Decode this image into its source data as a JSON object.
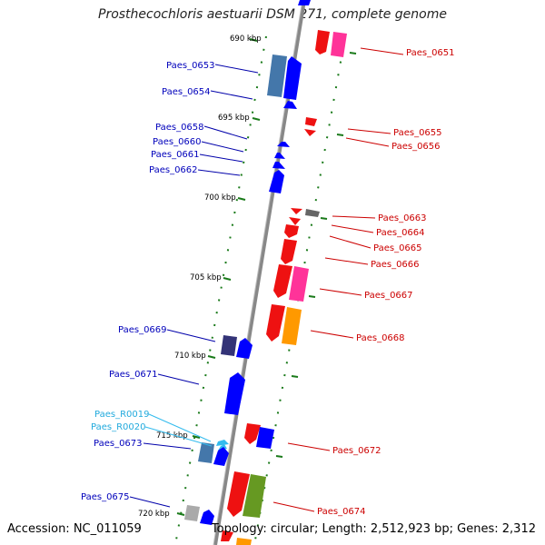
{
  "title": "Prosthecochloris aestuarii DSM 271, complete genome",
  "footer": {
    "accession": "Accession: NC_011059",
    "summary": "Topology: circular; Length: 2,512,923 bp; Genes: 2,312"
  },
  "ticks": [
    "690 kbp",
    "695 kbp",
    "700 kbp",
    "705 kbp",
    "710 kbp",
    "715 kbp",
    "720 kbp"
  ],
  "left_labels": [
    {
      "text": "Paes_0653",
      "color": "#0000bb"
    },
    {
      "text": "Paes_0654",
      "color": "#0000bb"
    },
    {
      "text": "Paes_0658",
      "color": "#0000bb"
    },
    {
      "text": "Paes_0660",
      "color": "#0000bb"
    },
    {
      "text": "Paes_0661",
      "color": "#0000bb"
    },
    {
      "text": "Paes_0662",
      "color": "#0000bb"
    },
    {
      "text": "Paes_0669",
      "color": "#0000bb"
    },
    {
      "text": "Paes_0671",
      "color": "#0000bb"
    },
    {
      "text": "Paes_R0019",
      "color": "#22aadd"
    },
    {
      "text": "Paes_R0020",
      "color": "#22aadd"
    },
    {
      "text": "Paes_0673",
      "color": "#0000bb"
    },
    {
      "text": "Paes_0675",
      "color": "#0000bb"
    }
  ],
  "right_labels": [
    {
      "text": "Paes_0651",
      "color": "#cc0000"
    },
    {
      "text": "Paes_0655",
      "color": "#cc0000"
    },
    {
      "text": "Paes_0656",
      "color": "#cc0000"
    },
    {
      "text": "Paes_0663",
      "color": "#cc0000"
    },
    {
      "text": "Paes_0664",
      "color": "#cc0000"
    },
    {
      "text": "Paes_0665",
      "color": "#cc0000"
    },
    {
      "text": "Paes_0666",
      "color": "#cc0000"
    },
    {
      "text": "Paes_0667",
      "color": "#cc0000"
    },
    {
      "text": "Paes_0668",
      "color": "#cc0000"
    },
    {
      "text": "Paes_0672",
      "color": "#cc0000"
    },
    {
      "text": "Paes_0674",
      "color": "#cc0000"
    }
  ],
  "colors": {
    "forward": "#0000ff",
    "reverse": "#ff0000",
    "backbone": "#888888",
    "tick": "#006600",
    "rna": "#33bbee",
    "pink": "#ff3399",
    "orange": "#ff9900",
    "olive": "#669922",
    "steel": "#4477aa",
    "indigo": "#333377",
    "grey": "#aaaaaa"
  }
}
